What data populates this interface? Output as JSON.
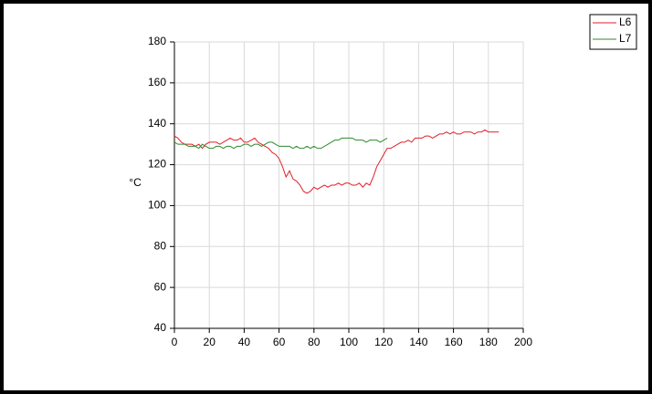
{
  "chart_data": {
    "type": "line",
    "ylabel": "°C",
    "x": [
      0,
      2,
      4,
      6,
      8,
      10,
      12,
      14,
      16,
      18,
      20,
      22,
      24,
      26,
      28,
      30,
      32,
      34,
      36,
      38,
      40,
      42,
      44,
      46,
      48,
      50,
      52,
      54,
      56,
      58,
      60,
      62,
      64,
      66,
      68,
      70,
      72,
      74,
      76,
      78,
      80,
      82,
      84,
      86,
      88,
      90,
      92,
      94,
      96,
      98,
      100,
      102,
      104,
      106,
      108,
      110,
      112,
      114,
      116,
      118,
      120,
      122,
      124,
      126,
      128,
      130,
      132,
      134,
      136,
      138,
      140,
      142,
      144,
      146,
      148,
      150,
      152,
      154,
      156,
      158,
      160,
      162,
      164,
      166,
      168,
      170,
      172,
      174,
      176,
      178,
      180,
      182,
      184,
      186
    ],
    "series": [
      {
        "name": "L6",
        "color": "#e0202a",
        "values": [
          134,
          133,
          131,
          130,
          130,
          130,
          129,
          130,
          128,
          130,
          131,
          131,
          131,
          130,
          131,
          132,
          133,
          132,
          132,
          133,
          131,
          131,
          132,
          133,
          131,
          130,
          129,
          128,
          126,
          125,
          123,
          119,
          114,
          117,
          113,
          112,
          110,
          107,
          106,
          107,
          109,
          108,
          109,
          110,
          109,
          110,
          110,
          111,
          110,
          111,
          111,
          110,
          110,
          111,
          109,
          111,
          110,
          114,
          119,
          122,
          125,
          128,
          128,
          129,
          130,
          131,
          131,
          132,
          131,
          133,
          133,
          133,
          134,
          134,
          133,
          134,
          135,
          135,
          136,
          135,
          136,
          135,
          135,
          136,
          136,
          136,
          135,
          136,
          136,
          137,
          136,
          136,
          136,
          136
        ]
      },
      {
        "name": "L7",
        "color": "#2e8b2e",
        "values": [
          131,
          130,
          130,
          130,
          129,
          129,
          129,
          128,
          130,
          129,
          128,
          128,
          129,
          129,
          128,
          129,
          129,
          128,
          129,
          129,
          130,
          130,
          129,
          130,
          130,
          129,
          130,
          131,
          131,
          130,
          129,
          129,
          129,
          129,
          128,
          129,
          128,
          128,
          129,
          128,
          129,
          128,
          128,
          129,
          130,
          131,
          132,
          132,
          133,
          133,
          133,
          133,
          132,
          132,
          132,
          131,
          132,
          132,
          132,
          131,
          132,
          133,
          null,
          null,
          null,
          null,
          null,
          null,
          null,
          null,
          null,
          null,
          null,
          null,
          null,
          null,
          null,
          null,
          null,
          null,
          null,
          null,
          null,
          null,
          null,
          null,
          null,
          null,
          null,
          null,
          null,
          null,
          null,
          null
        ]
      }
    ],
    "xlim": [
      0,
      200
    ],
    "xticks": [
      0,
      20,
      40,
      60,
      80,
      100,
      120,
      140,
      160,
      180,
      200
    ],
    "ylim": [
      40,
      180
    ],
    "yticks": [
      40,
      60,
      80,
      100,
      120,
      140,
      160,
      180
    ],
    "grid": true,
    "legend": "top-right"
  }
}
